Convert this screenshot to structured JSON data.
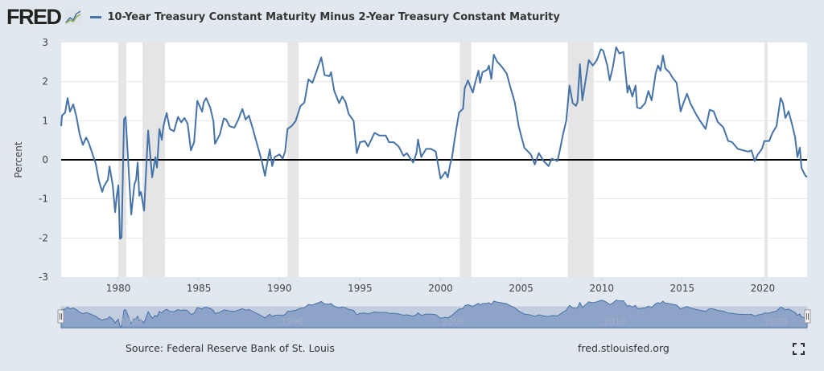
{
  "header": {
    "logo_text": "FRED",
    "logo_icon": "line-chart-icon",
    "legend_label": "10-Year Treasury Constant Maturity Minus 2-Year Treasury Constant Maturity"
  },
  "footer": {
    "source": "Source: Federal Reserve Bank of St. Louis",
    "url": "fred.stlouisfed.org",
    "fullscreen_icon": "fullscreen-icon"
  },
  "colors": {
    "series": "#4572a7",
    "background": "#e1e8f0",
    "recession": "#e5e5e5",
    "zero_line": "#000000"
  },
  "chart_data": {
    "type": "line",
    "title": "",
    "xlabel": "",
    "ylabel": "Percent",
    "xlim": [
      1976.45,
      2022.75
    ],
    "ylim": [
      -3,
      3
    ],
    "yticks": [
      "3",
      "2",
      "1",
      "0",
      "-1",
      "-2",
      "-3"
    ],
    "xticks": [
      "1980",
      "1985",
      "1990",
      "1995",
      "2000",
      "2005",
      "2010",
      "2015",
      "2020"
    ],
    "navigator_ticks": [
      "1980",
      "1990",
      "2000",
      "2010",
      "2020"
    ],
    "grid": true,
    "legend": "top-left",
    "zero_line": true,
    "recessions": [
      [
        1980.0,
        1980.5
      ],
      [
        1981.5,
        1982.9
      ],
      [
        1990.5,
        1991.2
      ],
      [
        2001.2,
        2001.9
      ],
      [
        2007.9,
        2009.5
      ],
      [
        2020.1,
        2020.3
      ]
    ],
    "series": [
      {
        "name": "10-Year Treasury Constant Maturity Minus 2-Year Treasury Constant Maturity",
        "points": [
          [
            1976.45,
            0.86
          ],
          [
            1976.5,
            1.13
          ],
          [
            1976.7,
            1.21
          ],
          [
            1976.85,
            1.58
          ],
          [
            1977.0,
            1.23
          ],
          [
            1977.2,
            1.42
          ],
          [
            1977.4,
            1.1
          ],
          [
            1977.6,
            0.65
          ],
          [
            1977.8,
            0.38
          ],
          [
            1978.0,
            0.57
          ],
          [
            1978.15,
            0.45
          ],
          [
            1978.3,
            0.27
          ],
          [
            1978.6,
            -0.1
          ],
          [
            1978.8,
            -0.55
          ],
          [
            1979.0,
            -0.82
          ],
          [
            1979.1,
            -0.68
          ],
          [
            1979.35,
            -0.51
          ],
          [
            1979.45,
            -0.17
          ],
          [
            1979.65,
            -0.65
          ],
          [
            1979.8,
            -1.34
          ],
          [
            1979.9,
            -0.92
          ],
          [
            1980.0,
            -0.65
          ],
          [
            1980.1,
            -2.02
          ],
          [
            1980.2,
            -1.99
          ],
          [
            1980.35,
            1.03
          ],
          [
            1980.45,
            1.1
          ],
          [
            1980.6,
            0.03
          ],
          [
            1980.8,
            -1.4
          ],
          [
            1981.0,
            -0.62
          ],
          [
            1981.1,
            -0.51
          ],
          [
            1981.2,
            -0.07
          ],
          [
            1981.3,
            -0.92
          ],
          [
            1981.4,
            -0.82
          ],
          [
            1981.6,
            -1.3
          ],
          [
            1981.85,
            0.75
          ],
          [
            1982.1,
            -0.45
          ],
          [
            1982.3,
            0.07
          ],
          [
            1982.4,
            -0.2
          ],
          [
            1982.55,
            0.79
          ],
          [
            1982.7,
            0.51
          ],
          [
            1982.8,
            0.86
          ],
          [
            1983.0,
            1.2
          ],
          [
            1983.2,
            0.79
          ],
          [
            1983.45,
            0.73
          ],
          [
            1983.7,
            1.1
          ],
          [
            1983.9,
            0.96
          ],
          [
            1984.1,
            1.07
          ],
          [
            1984.3,
            0.92
          ],
          [
            1984.5,
            0.24
          ],
          [
            1984.7,
            0.45
          ],
          [
            1984.9,
            1.51
          ],
          [
            1985.2,
            1.23
          ],
          [
            1985.3,
            1.47
          ],
          [
            1985.45,
            1.58
          ],
          [
            1985.7,
            1.34
          ],
          [
            1985.9,
            0.99
          ],
          [
            1986.0,
            0.41
          ],
          [
            1986.3,
            0.65
          ],
          [
            1986.55,
            1.06
          ],
          [
            1986.7,
            1.03
          ],
          [
            1986.9,
            0.86
          ],
          [
            1987.2,
            0.82
          ],
          [
            1987.45,
            1.03
          ],
          [
            1987.7,
            1.3
          ],
          [
            1987.9,
            1.03
          ],
          [
            1988.1,
            1.13
          ],
          [
            1988.35,
            0.79
          ],
          [
            1988.6,
            0.41
          ],
          [
            1988.9,
            -0.03
          ],
          [
            1989.1,
            -0.41
          ],
          [
            1989.2,
            -0.17
          ],
          [
            1989.4,
            0.27
          ],
          [
            1989.55,
            -0.16
          ],
          [
            1989.7,
            0.07
          ],
          [
            1990.0,
            0.14
          ],
          [
            1990.2,
            0.03
          ],
          [
            1990.35,
            0.21
          ],
          [
            1990.5,
            0.79
          ],
          [
            1990.75,
            0.86
          ],
          [
            1991.0,
            0.99
          ],
          [
            1991.3,
            1.37
          ],
          [
            1991.55,
            1.47
          ],
          [
            1991.8,
            2.06
          ],
          [
            1992.05,
            1.97
          ],
          [
            1992.4,
            2.38
          ],
          [
            1992.6,
            2.62
          ],
          [
            1992.8,
            2.17
          ],
          [
            1993.1,
            2.14
          ],
          [
            1993.2,
            2.24
          ],
          [
            1993.4,
            1.76
          ],
          [
            1993.7,
            1.45
          ],
          [
            1993.9,
            1.62
          ],
          [
            1994.1,
            1.48
          ],
          [
            1994.3,
            1.17
          ],
          [
            1994.6,
            1.0
          ],
          [
            1994.8,
            0.17
          ],
          [
            1995.0,
            0.45
          ],
          [
            1995.3,
            0.48
          ],
          [
            1995.5,
            0.34
          ],
          [
            1995.9,
            0.69
          ],
          [
            1996.2,
            0.62
          ],
          [
            1996.6,
            0.62
          ],
          [
            1996.8,
            0.45
          ],
          [
            1997.1,
            0.45
          ],
          [
            1997.4,
            0.34
          ],
          [
            1997.7,
            0.1
          ],
          [
            1997.9,
            0.17
          ],
          [
            1998.3,
            -0.07
          ],
          [
            1998.5,
            0.17
          ],
          [
            1998.6,
            0.52
          ],
          [
            1998.8,
            0.07
          ],
          [
            1999.1,
            0.28
          ],
          [
            1999.4,
            0.28
          ],
          [
            1999.7,
            0.21
          ],
          [
            2000.0,
            -0.48
          ],
          [
            2000.3,
            -0.31
          ],
          [
            2000.45,
            -0.45
          ],
          [
            2000.6,
            -0.1
          ],
          [
            2000.7,
            0.03
          ],
          [
            2000.9,
            0.59
          ],
          [
            2001.15,
            1.21
          ],
          [
            2001.4,
            1.31
          ],
          [
            2001.5,
            1.83
          ],
          [
            2001.7,
            2.03
          ],
          [
            2002.0,
            1.72
          ],
          [
            2002.1,
            1.9
          ],
          [
            2002.35,
            2.28
          ],
          [
            2002.45,
            1.97
          ],
          [
            2002.6,
            2.24
          ],
          [
            2002.9,
            2.31
          ],
          [
            2003.0,
            2.41
          ],
          [
            2003.15,
            2.07
          ],
          [
            2003.3,
            2.69
          ],
          [
            2003.5,
            2.52
          ],
          [
            2003.8,
            2.38
          ],
          [
            2004.1,
            2.21
          ],
          [
            2004.4,
            1.76
          ],
          [
            2004.6,
            1.48
          ],
          [
            2004.85,
            0.86
          ],
          [
            2005.2,
            0.31
          ],
          [
            2005.6,
            0.14
          ],
          [
            2005.85,
            -0.12
          ],
          [
            2006.1,
            0.17
          ],
          [
            2006.4,
            -0.03
          ],
          [
            2006.7,
            -0.16
          ],
          [
            2006.9,
            0.03
          ],
          [
            2007.25,
            -0.03
          ],
          [
            2007.4,
            0.24
          ],
          [
            2007.6,
            0.66
          ],
          [
            2007.8,
            1.0
          ],
          [
            2008.0,
            1.9
          ],
          [
            2008.2,
            1.45
          ],
          [
            2008.4,
            1.38
          ],
          [
            2008.5,
            1.48
          ],
          [
            2008.65,
            2.45
          ],
          [
            2008.8,
            1.52
          ],
          [
            2009.0,
            2.03
          ],
          [
            2009.2,
            2.55
          ],
          [
            2009.45,
            2.41
          ],
          [
            2009.7,
            2.55
          ],
          [
            2009.95,
            2.83
          ],
          [
            2010.1,
            2.79
          ],
          [
            2010.35,
            2.41
          ],
          [
            2010.5,
            2.03
          ],
          [
            2010.7,
            2.38
          ],
          [
            2010.9,
            2.88
          ],
          [
            2011.1,
            2.72
          ],
          [
            2011.35,
            2.76
          ],
          [
            2011.6,
            1.72
          ],
          [
            2011.7,
            1.9
          ],
          [
            2011.9,
            1.62
          ],
          [
            2012.1,
            1.9
          ],
          [
            2012.2,
            1.34
          ],
          [
            2012.4,
            1.31
          ],
          [
            2012.7,
            1.45
          ],
          [
            2012.9,
            1.76
          ],
          [
            2013.1,
            1.52
          ],
          [
            2013.35,
            2.21
          ],
          [
            2013.5,
            2.41
          ],
          [
            2013.65,
            2.28
          ],
          [
            2013.8,
            2.67
          ],
          [
            2013.95,
            2.34
          ],
          [
            2014.2,
            2.24
          ],
          [
            2014.4,
            2.1
          ],
          [
            2014.65,
            1.97
          ],
          [
            2014.9,
            1.24
          ],
          [
            2015.1,
            1.48
          ],
          [
            2015.3,
            1.69
          ],
          [
            2015.5,
            1.45
          ],
          [
            2015.85,
            1.17
          ],
          [
            2016.1,
            1.0
          ],
          [
            2016.45,
            0.79
          ],
          [
            2016.7,
            1.28
          ],
          [
            2016.95,
            1.24
          ],
          [
            2017.2,
            0.97
          ],
          [
            2017.55,
            0.83
          ],
          [
            2017.85,
            0.48
          ],
          [
            2018.1,
            0.45
          ],
          [
            2018.45,
            0.28
          ],
          [
            2018.8,
            0.24
          ],
          [
            2019.1,
            0.21
          ],
          [
            2019.3,
            0.24
          ],
          [
            2019.5,
            -0.03
          ],
          [
            2019.7,
            0.14
          ],
          [
            2019.95,
            0.28
          ],
          [
            2020.1,
            0.48
          ],
          [
            2020.4,
            0.48
          ],
          [
            2020.6,
            0.69
          ],
          [
            2020.85,
            0.86
          ],
          [
            2021.1,
            1.58
          ],
          [
            2021.25,
            1.45
          ],
          [
            2021.4,
            1.07
          ],
          [
            2021.6,
            1.24
          ],
          [
            2021.8,
            0.93
          ],
          [
            2022.0,
            0.59
          ],
          [
            2022.15,
            0.07
          ],
          [
            2022.3,
            0.31
          ],
          [
            2022.4,
            -0.21
          ],
          [
            2022.65,
            -0.41
          ],
          [
            2022.75,
            -0.44
          ]
        ]
      }
    ]
  }
}
